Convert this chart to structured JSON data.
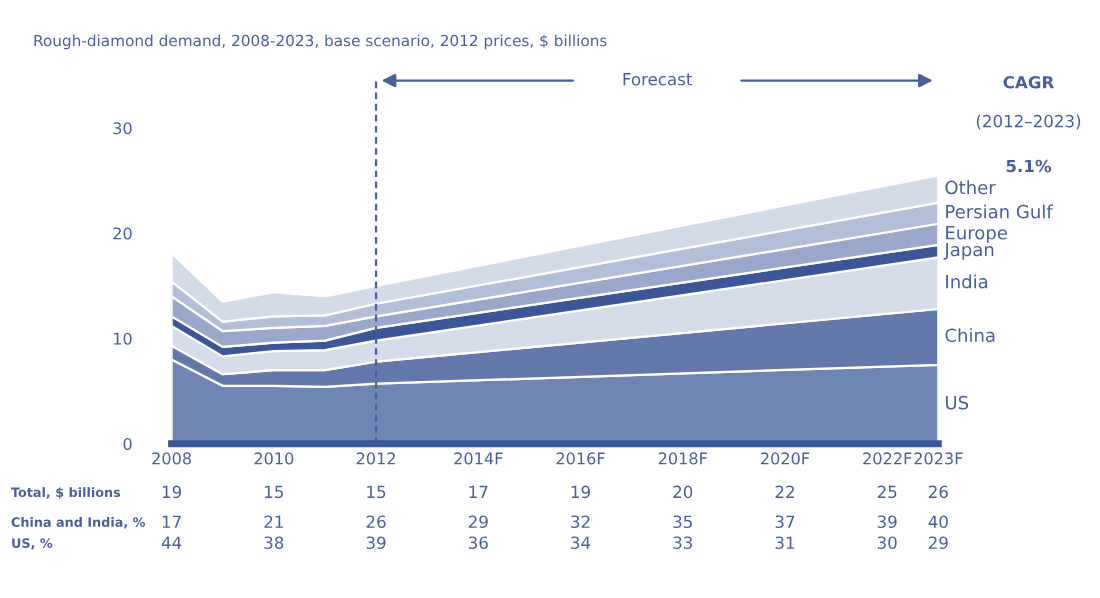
{
  "chart_data": {
    "type": "area",
    "stacked": true,
    "title": "Rough-diamond demand, 2008-2023, base scenario, 2012 prices, $ billions",
    "x": [
      2008,
      2009,
      2010,
      2011,
      2012,
      2023
    ],
    "xlim": [
      2008,
      2023
    ],
    "xticks": [
      {
        "value": 2008,
        "label": "2008"
      },
      {
        "value": 2010,
        "label": "2010"
      },
      {
        "value": 2012,
        "label": "2012"
      },
      {
        "value": 2014,
        "label": "2014F"
      },
      {
        "value": 2016,
        "label": "2016F"
      },
      {
        "value": 2018,
        "label": "2018F"
      },
      {
        "value": 2020,
        "label": "2020F"
      },
      {
        "value": 2022,
        "label": "2022F"
      },
      {
        "value": 2023,
        "label": "2023F"
      }
    ],
    "ylim": [
      0,
      30
    ],
    "yticks": [
      0,
      10,
      20,
      30
    ],
    "grid": false,
    "series": [
      {
        "name": "US",
        "color": "#6f86b4",
        "values": [
          8.0,
          5.5,
          5.5,
          5.4,
          5.7,
          7.5
        ]
      },
      {
        "name": "China",
        "color": "#6479ab",
        "values": [
          1.3,
          1.1,
          1.5,
          1.6,
          2.1,
          5.3
        ]
      },
      {
        "name": "India",
        "color": "#d5dcea",
        "values": [
          1.9,
          1.7,
          1.8,
          1.9,
          2.0,
          4.9
        ]
      },
      {
        "name": "Japan",
        "color": "#3c5797",
        "values": [
          0.9,
          0.9,
          0.8,
          0.9,
          1.2,
          1.2
        ]
      },
      {
        "name": "Europe",
        "color": "#9aa9cb",
        "values": [
          1.9,
          1.5,
          1.4,
          1.4,
          1.1,
          2.0
        ]
      },
      {
        "name": "Persian Gulf",
        "color": "#b3bfd9",
        "values": [
          1.4,
          0.9,
          1.1,
          1.0,
          1.2,
          2.0
        ]
      },
      {
        "name": "Other",
        "color": "#d3dae8",
        "values": [
          2.7,
          1.9,
          2.3,
          1.8,
          1.7,
          2.6
        ]
      }
    ],
    "ref_lines": [
      {
        "axis": "x",
        "value": 2012,
        "label": "Forecast",
        "line_style": "dashed",
        "color": "#4a5f96"
      }
    ],
    "annotations": [
      "CAGR",
      "(2012–2023)",
      "5.1%",
      "Total, $ billions",
      "19",
      "15",
      "15",
      "17",
      "19",
      "20",
      "22",
      "25",
      "26",
      "China and India, %",
      "17",
      "21",
      "26",
      "29",
      "32",
      "35",
      "37",
      "39",
      "40",
      "US, %",
      "44",
      "38",
      "39",
      "36",
      "34",
      "33",
      "31",
      "30",
      "29"
    ]
  }
}
